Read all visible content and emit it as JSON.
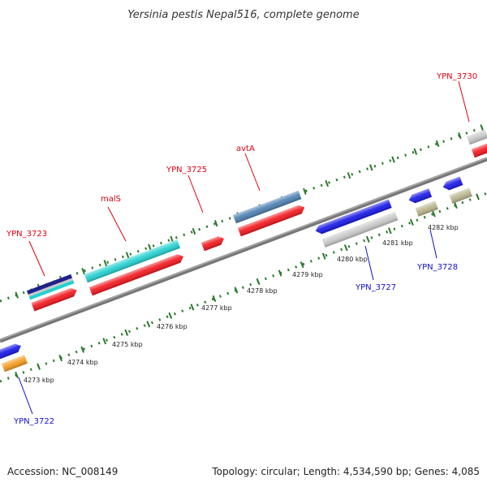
{
  "title": "Yersinia pestis Nepal516, complete genome",
  "footer": {
    "accession": "Accession: NC_008149",
    "summary": "Topology: circular; Length: 4,534,590 bp; Genes: 4,085"
  },
  "ticks": [
    "4273 kbp",
    "4274 kbp",
    "4275 kbp",
    "4276 kbp",
    "4277 kbp",
    "4278 kbp",
    "4279 kbp",
    "4280 kbp",
    "4281 kbp",
    "4282 kbp"
  ],
  "labels": {
    "ypn3723": "YPN_3723",
    "mals": "malS",
    "ypn3725": "YPN_3725",
    "avta": "avtA",
    "ypn3730": "YPN_3730",
    "ypn3722": "YPN_3722",
    "ypn3727": "YPN_3727",
    "ypn3728": "YPN_3728"
  },
  "colors": {
    "backbone": "#808080",
    "dots": "#2a7a2a",
    "top_label": "#e0000f",
    "bottom_label": "#1010d0",
    "red": "#f2141a",
    "cyan": "#22d0d0",
    "steelblue": "#4a7fb0",
    "blue": "#1414e6",
    "gray": "#c8c8c8",
    "olive": "#b8b48a",
    "orange": "#f59a1c",
    "navy": "#20208a"
  }
}
